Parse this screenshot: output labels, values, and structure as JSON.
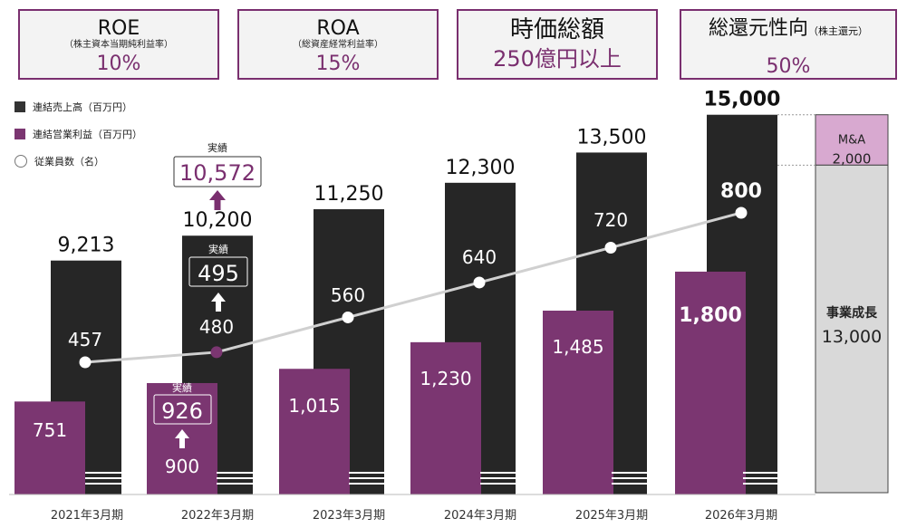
{
  "kpis": [
    {
      "title": "ROE",
      "title_small": "",
      "sub": "（株主資本当期純利益率）",
      "value": "10%"
    },
    {
      "title": "ROA",
      "title_small": "",
      "sub": "（総資産経常利益率）",
      "value": "15%"
    },
    {
      "title": "時価総額",
      "title_small": "",
      "sub": "",
      "value": "250億円以上"
    },
    {
      "title": "総還元性向",
      "title_small": "（株主還元）",
      "sub": "",
      "value": "50%"
    }
  ],
  "legend": {
    "sales": "連結売上高（百万円）",
    "profit": "連結営業利益（百万円）",
    "employees": "従業員数（名）"
  },
  "colors": {
    "sales_bar": "#262626",
    "profit_bar": "#7b3671",
    "line": "#d0d0d0",
    "accent": "#7a2f6f",
    "ma_box": "#d8a9d0",
    "growth_box": "#d9d9d9"
  },
  "chart_data": {
    "type": "bar",
    "categories": [
      "2021年3月期",
      "2022年3月期",
      "2023年3月期",
      "2024年3月期",
      "2025年3月期",
      "2026年3月期"
    ],
    "series": [
      {
        "name": "連結売上高（百万円）",
        "values": [
          9213,
          10200,
          11250,
          12300,
          13500,
          15000
        ]
      },
      {
        "name": "連結営業利益（百万円）",
        "values": [
          751,
          900,
          1015,
          1230,
          1485,
          1800
        ]
      },
      {
        "name": "従業員数（名）",
        "type": "line",
        "values": [
          457,
          480,
          560,
          640,
          720,
          800
        ]
      }
    ],
    "value_labels": {
      "sales": [
        "9,213",
        "10,200",
        "11,250",
        "12,300",
        "13,500",
        "15,000"
      ],
      "profit": [
        "751",
        "900",
        "1,015",
        "1,230",
        "1,485",
        "1,800"
      ],
      "employees": [
        "457",
        "480",
        "560",
        "640",
        "720",
        "800"
      ]
    },
    "actuals_2022": {
      "label": "実績",
      "sales": "10,572",
      "profit": "926",
      "employees": "495"
    },
    "breakdown_2026": [
      {
        "label": "M&A",
        "value": "2,000"
      },
      {
        "label": "事業成長",
        "value": "13,000"
      }
    ]
  }
}
